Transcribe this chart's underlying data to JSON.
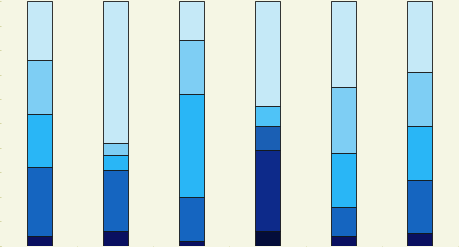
{
  "bar_data": [
    {
      "segments": [
        0.04,
        0.28,
        0.22,
        0.22,
        0.24
      ],
      "colors": [
        "#0a1060",
        "#1565c0",
        "#29b6f6",
        "#7ecef4",
        "#c5e9f7"
      ]
    },
    {
      "segments": [
        0.06,
        0.25,
        0.06,
        0.05,
        0.58
      ],
      "colors": [
        "#0a1060",
        "#1565c0",
        "#29b6f6",
        "#7ecef4",
        "#c5e9f7"
      ]
    },
    {
      "segments": [
        0.02,
        0.18,
        0.42,
        0.22,
        0.16
      ],
      "colors": [
        "#0a1060",
        "#1565c0",
        "#29b6f6",
        "#7ecef4",
        "#c5e9f7"
      ]
    },
    {
      "segments": [
        0.06,
        0.33,
        0.1,
        0.08,
        0.43
      ],
      "colors": [
        "#040d3a",
        "#0d2a8a",
        "#1a5fb4",
        "#4fc3f7",
        "#c5e9f7"
      ]
    },
    {
      "segments": [
        0.04,
        0.12,
        0.22,
        0.27,
        0.35
      ],
      "colors": [
        "#0a1060",
        "#1565c0",
        "#29b6f6",
        "#7ecef4",
        "#c5e9f7"
      ]
    },
    {
      "segments": [
        0.05,
        0.22,
        0.22,
        0.22,
        0.29
      ],
      "colors": [
        "#0a1060",
        "#1565c0",
        "#29b6f6",
        "#7ecef4",
        "#c5e9f7"
      ]
    }
  ],
  "bar_width": 0.32,
  "positions": [
    0,
    1,
    2,
    3,
    4,
    5
  ],
  "xlim": [
    -0.45,
    5.45
  ],
  "ylim": [
    0,
    1.0
  ],
  "background_color": "#f5f6e4",
  "bar_edge_color": "#111111",
  "bar_edge_width": 0.6
}
